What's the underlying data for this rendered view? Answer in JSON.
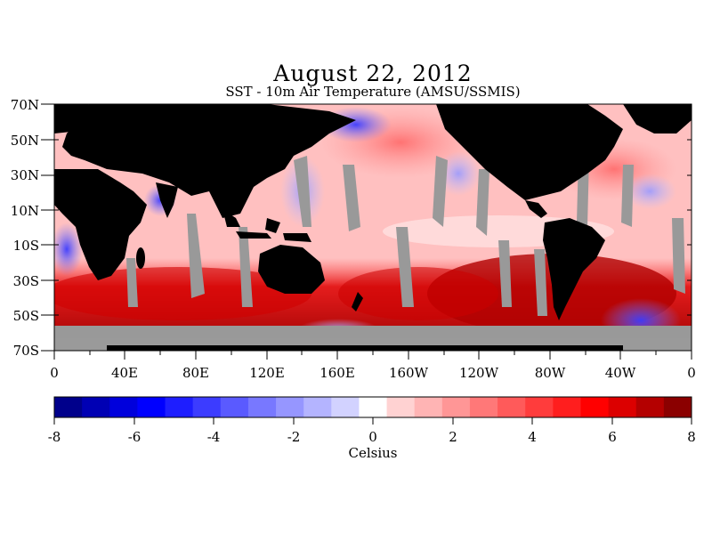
{
  "title": "August 22, 2012",
  "subtitle": "SST - 10m Air Temperature (AMSU/SSMIS)",
  "map": {
    "lat_labels": [
      "70N",
      "50N",
      "30N",
      "10N",
      "10S",
      "30S",
      "50S",
      "70S"
    ],
    "lon_labels": [
      "0",
      "40E",
      "80E",
      "120E",
      "160E",
      "160W",
      "120W",
      "80W",
      "40W",
      "0"
    ],
    "colors": {
      "land": "#000000",
      "missing": "#999999"
    }
  },
  "colorbar": {
    "tick_labels": [
      "-8",
      "-6",
      "-4",
      "-2",
      "0",
      "2",
      "4",
      "6",
      "8"
    ],
    "unit_label": "Celsius",
    "colors": [
      "#00008b",
      "#0000b4",
      "#0000dc",
      "#0000ff",
      "#1e1eff",
      "#3c3cff",
      "#5a5aff",
      "#7878ff",
      "#9696ff",
      "#b4b4ff",
      "#d2d2ff",
      "#ffffff",
      "#ffd2d2",
      "#ffb4b4",
      "#ff9696",
      "#ff7878",
      "#ff5a5a",
      "#ff3c3c",
      "#ff1e1e",
      "#ff0000",
      "#dc0000",
      "#b40000",
      "#8b0000"
    ]
  }
}
